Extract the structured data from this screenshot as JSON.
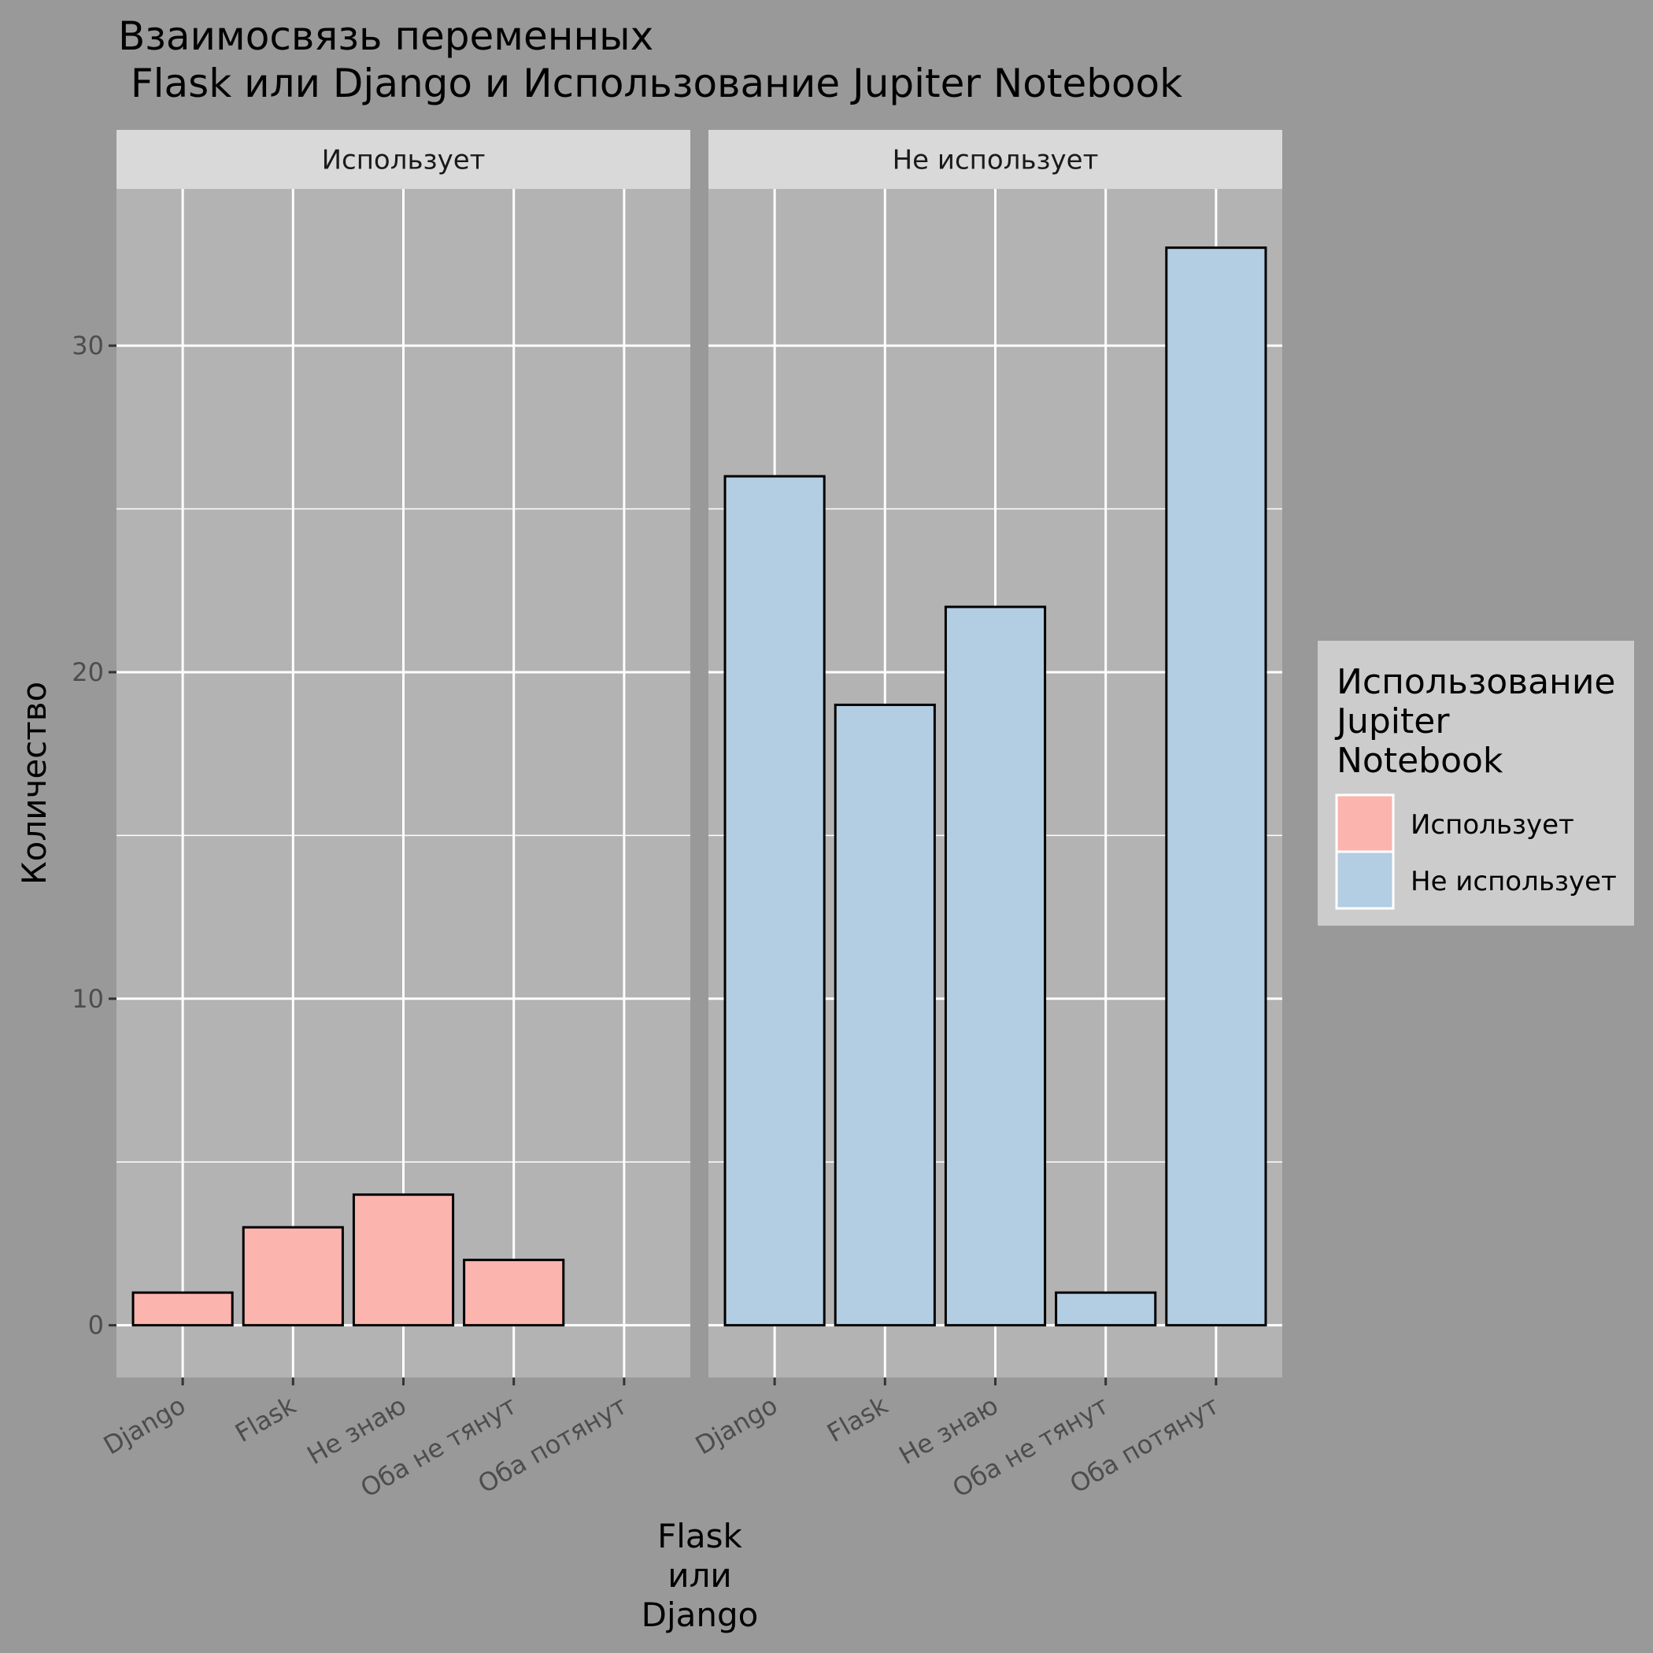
{
  "chart_data": {
    "type": "bar",
    "title_lines": [
      "Взаимосвязь переменных",
      " Flask или Django и Использование Jupiter Notebook"
    ],
    "xlabel_lines": [
      "Flask",
      "или",
      "Django"
    ],
    "ylabel": "Количество",
    "ylim": [
      -1.6,
      34.8
    ],
    "yticks": [
      0,
      10,
      20,
      30
    ],
    "categories": [
      "Django",
      "Flask",
      "Не знаю",
      "Оба не тянут",
      "Оба потянут"
    ],
    "facets": [
      {
        "label": "Использует",
        "color": "#FBB4AE",
        "values": [
          1,
          3,
          4,
          2,
          0
        ]
      },
      {
        "label": "Не использует",
        "color": "#B3CDE3",
        "values": [
          26,
          19,
          22,
          1,
          33
        ]
      }
    ],
    "legend": {
      "title_lines": [
        "Использование",
        "Jupiter",
        "Notebook"
      ],
      "position": "right",
      "items": [
        {
          "label": "Использует",
          "color": "#FBB4AE"
        },
        {
          "label": "Не использует",
          "color": "#B3CDE3"
        }
      ]
    },
    "grid": true,
    "colors": {
      "background": "#999999",
      "panel": "#B3B3B3",
      "strip": "#D9D9D9",
      "legend_box": "#CCCCCC",
      "grid": "#FFFFFF"
    }
  }
}
